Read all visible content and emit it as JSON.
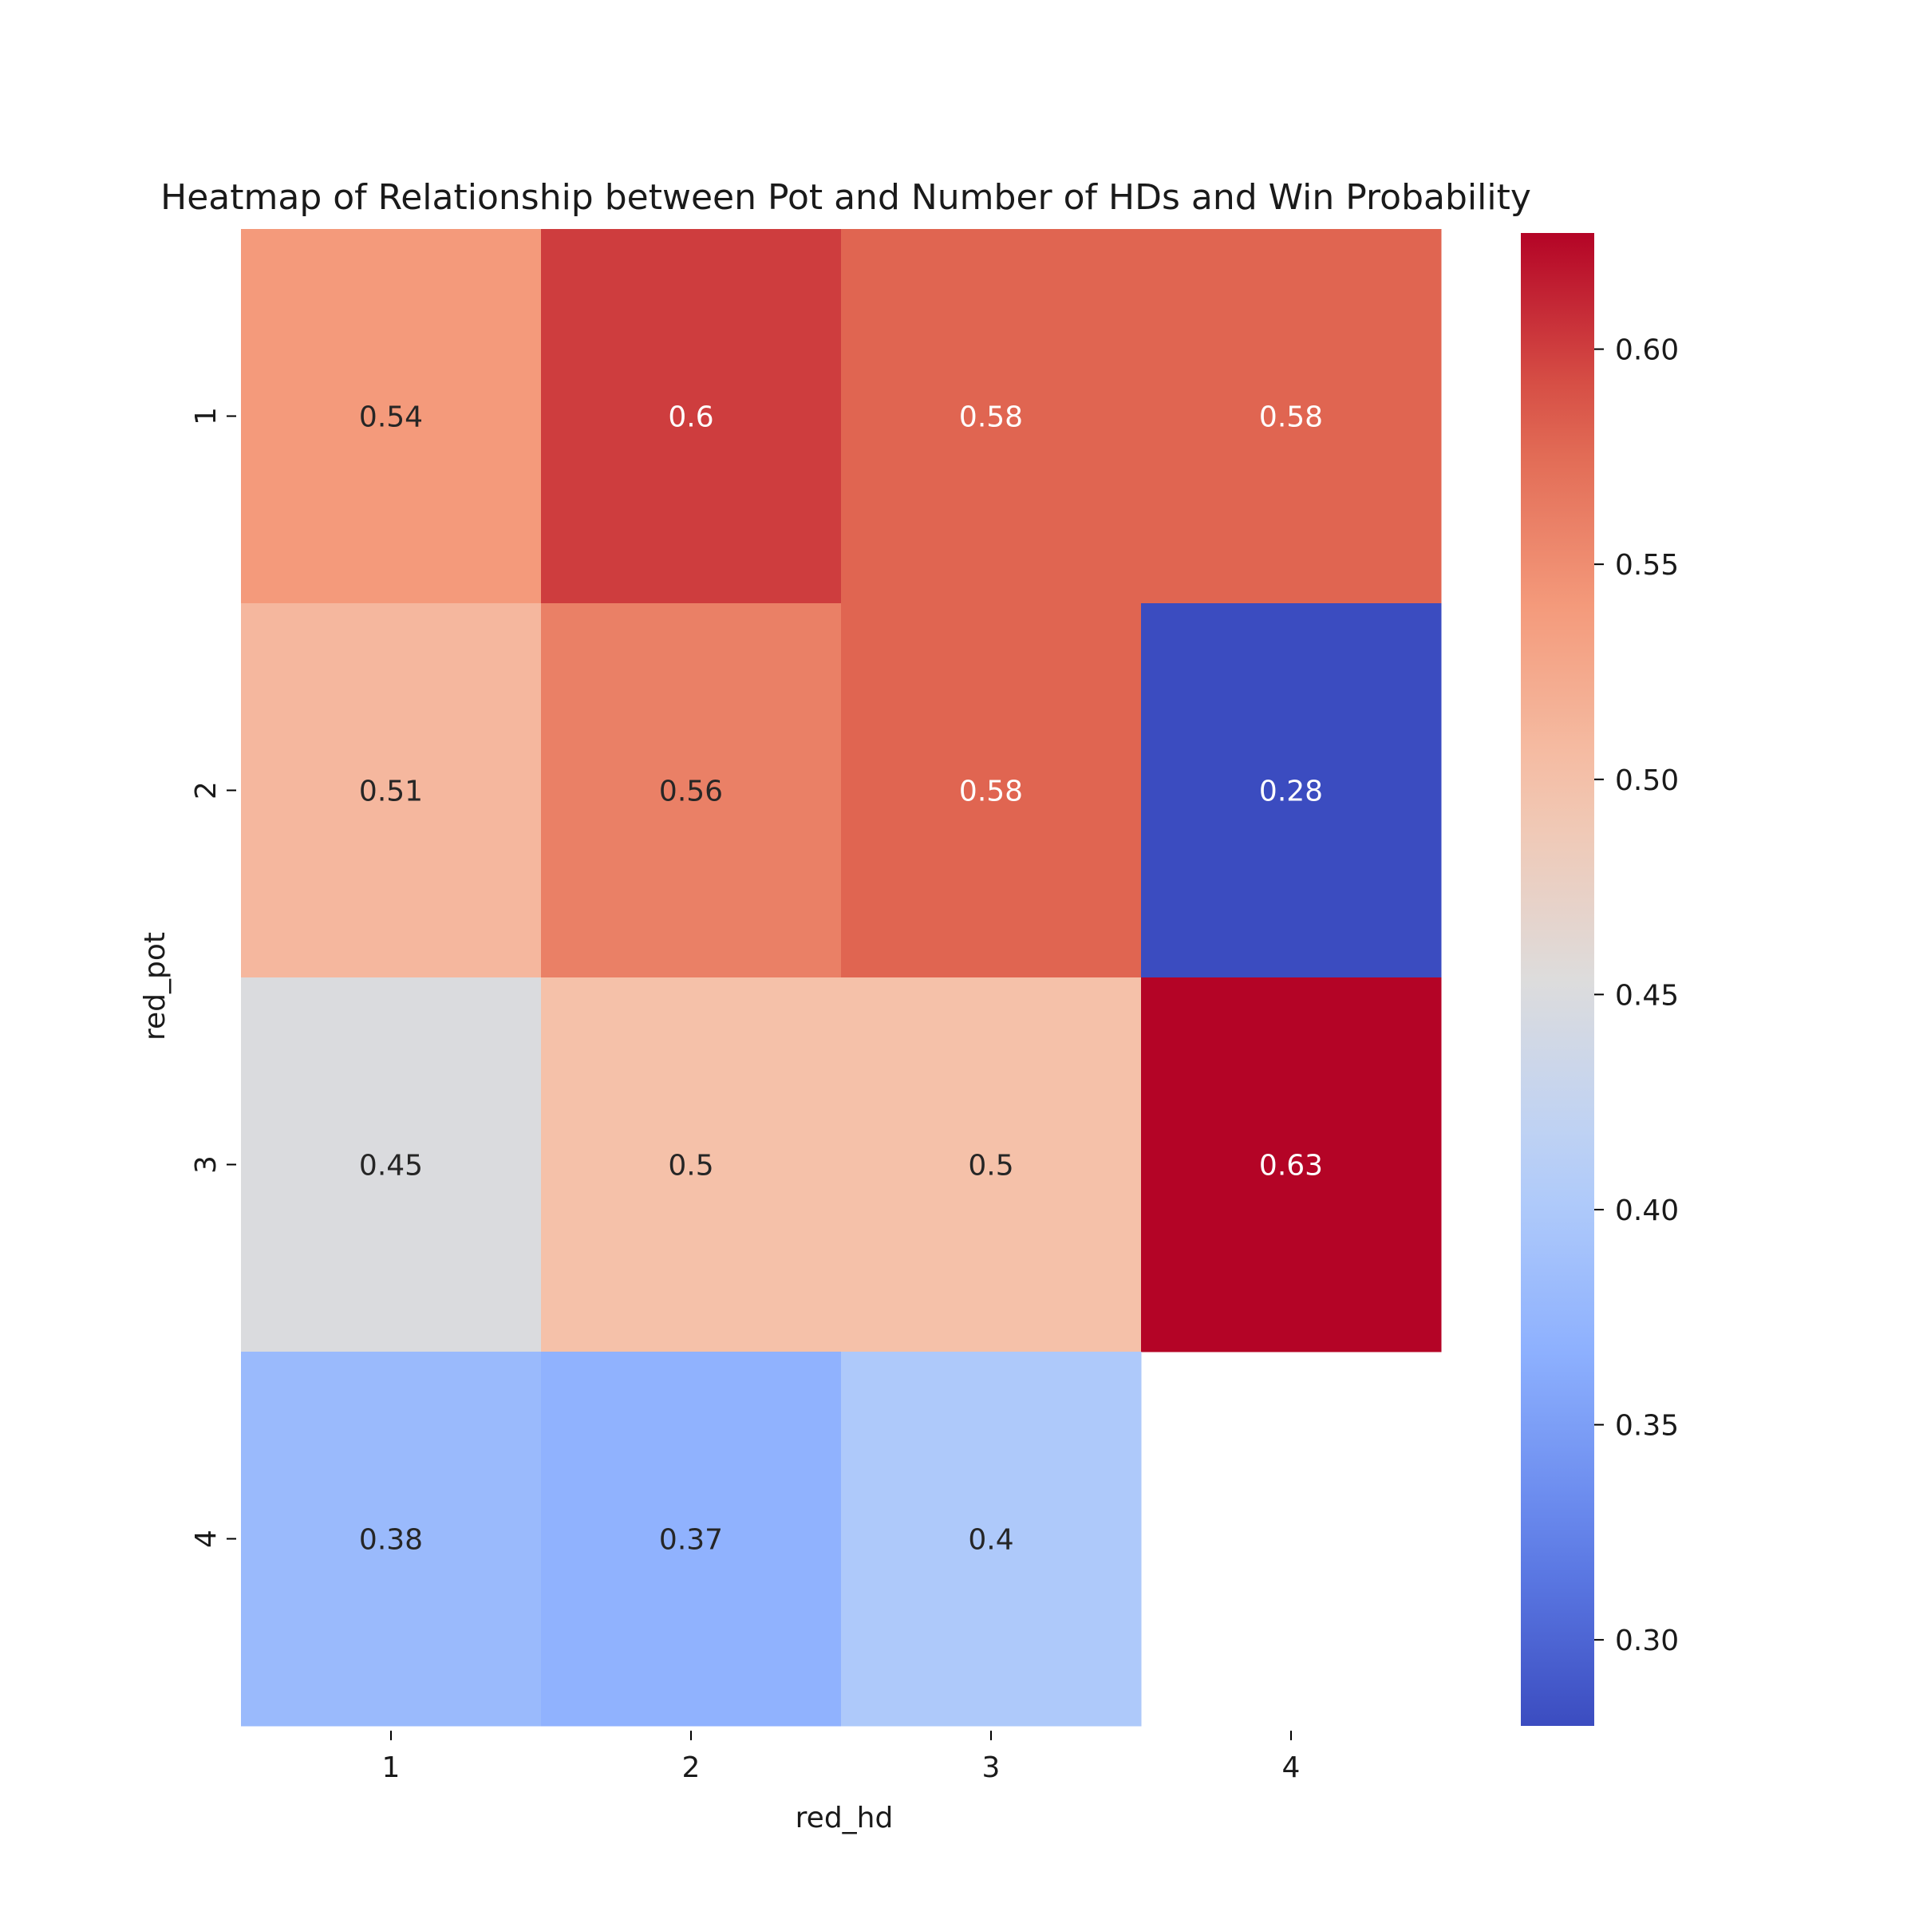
{
  "chart_data": {
    "type": "heatmap",
    "title": "Heatmap of Relationship between Pot and Number of HDs and Win Probability",
    "xlabel": "red_hd",
    "ylabel": "red_pot",
    "x_categories": [
      "1",
      "2",
      "3",
      "4"
    ],
    "y_categories": [
      "1",
      "2",
      "3",
      "4"
    ],
    "values": [
      [
        0.54,
        0.6,
        0.58,
        0.58
      ],
      [
        0.51,
        0.56,
        0.58,
        0.28
      ],
      [
        0.45,
        0.5,
        0.5,
        0.63
      ],
      [
        0.38,
        0.37,
        0.4,
        null
      ]
    ],
    "annotations": [
      [
        "0.54",
        "0.6",
        "0.58",
        "0.58"
      ],
      [
        "0.51",
        "0.56",
        "0.58",
        "0.28"
      ],
      [
        "0.45",
        "0.5",
        "0.5",
        "0.63"
      ],
      [
        "0.38",
        "0.37",
        "0.4",
        ""
      ]
    ],
    "colormap": "coolwarm",
    "colorbar": {
      "range": [
        0.28,
        0.627
      ],
      "ticks": [
        0.3,
        0.35,
        0.4,
        0.45,
        0.5,
        0.55,
        0.6
      ],
      "tick_labels": [
        "0.30",
        "0.35",
        "0.40",
        "0.45",
        "0.50",
        "0.55",
        "0.60"
      ]
    }
  }
}
